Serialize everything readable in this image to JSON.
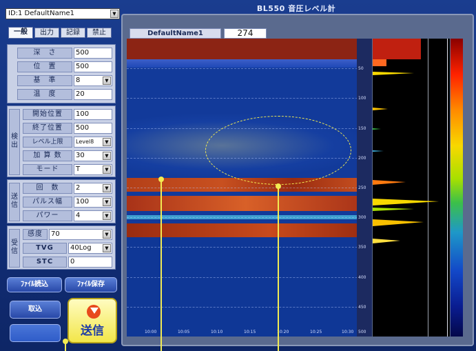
{
  "window": {
    "title": "BL550 音圧レベル計"
  },
  "selector": {
    "value": "ID:1 DefaultName1"
  },
  "tabs": [
    "一般",
    "出力",
    "記録",
    "禁止"
  ],
  "general": {
    "depth": {
      "label": "深　さ",
      "value": "500"
    },
    "position": {
      "label": "位　置",
      "value": "500"
    },
    "base": {
      "label": "基　準",
      "value": "8"
    },
    "temp": {
      "label": "温　度",
      "value": "20"
    }
  },
  "detect": {
    "group_label": "検出",
    "start": {
      "label": "開始位置",
      "value": "100"
    },
    "end": {
      "label": "終了位置",
      "value": "500"
    },
    "level": {
      "label": "レベル上限",
      "value": "Level8"
    },
    "count": {
      "label": "加 算 数",
      "value": "30"
    },
    "mode": {
      "label": "モード",
      "value": "T"
    }
  },
  "transmit": {
    "group_label": "送信",
    "times": {
      "label": "回　数",
      "value": "2"
    },
    "pulse": {
      "label": "パルス幅",
      "value": "100"
    },
    "power": {
      "label": "パワー",
      "value": "4"
    }
  },
  "receive": {
    "group_label": "受信",
    "gain": {
      "label": "感度",
      "value": "70"
    },
    "tvg": {
      "label": "TVG",
      "value": "40Log"
    },
    "stc": {
      "label": "STC",
      "value": "0"
    }
  },
  "buttons": {
    "file_load": "ﾌｧｲﾙ読込",
    "file_save": "ﾌｧｲﾙ保存",
    "import": "取込",
    "send": "送信"
  },
  "display": {
    "name": "DefaultName1",
    "value": "274",
    "depth_ticks": [
      "50",
      "100",
      "150",
      "200",
      "250",
      "300",
      "350",
      "400",
      "450",
      "500"
    ],
    "time_ticks": [
      "10:00",
      "10:05",
      "10:10",
      "10:15",
      "10:20",
      "10:25",
      "10:30"
    ]
  },
  "colors": {
    "accent_yellow": "#f3ec52",
    "frame_blue": "#1a3d8f"
  }
}
